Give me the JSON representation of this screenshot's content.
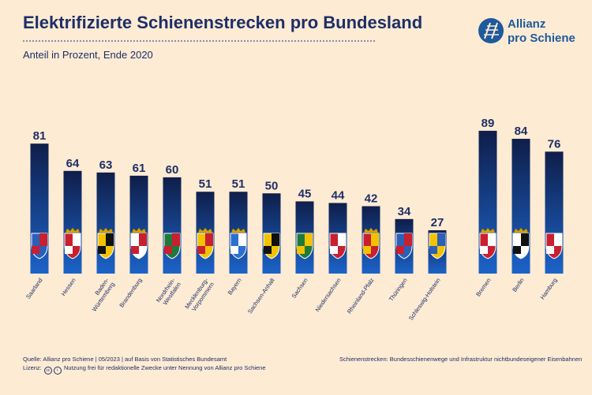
{
  "header": {
    "title": "Elektrifizierte Schienenstrecken pro Bundesland",
    "subtitle": "Anteil in Prozent, Ende 2020"
  },
  "logo": {
    "line1": "Allianz",
    "line2": "pro Schiene",
    "icon": "rail-tracks-logo-icon"
  },
  "footer": {
    "source": "Quelle: Allianz pro Schiene | 05/2023 | auf Basis von Statistisches Bundesamt",
    "license_label": "Lizenz:",
    "license_cc": "cc",
    "license_by": "i",
    "license_text": "Nutzung frei für redaktionelle Zwecke unter Nennung von Allianz pro Schiene",
    "note": "Schienenstrecken: Bundesschienenwege und Infrastruktur nichtbundeseigener Eisenbahnen"
  },
  "colors": {
    "bar_top": "#0f1e4a",
    "bar_bottom": "#1c63c8",
    "text": "#1e2f66",
    "background": "#fdebd4"
  },
  "chart_data": {
    "type": "bar",
    "title": "Elektrifizierte Schienenstrecken pro Bundesland",
    "subtitle": "Anteil in Prozent, Ende 2020",
    "ylim": [
      0,
      100
    ],
    "grid": false,
    "categories": [
      "Saarland",
      "Hessen",
      "Baden-Württemberg",
      "Brandenburg",
      "Nordrhein-Westfalen",
      "Mecklenburg-Vorpommern",
      "Bayern",
      "Sachsen-Anhalt",
      "Sachsen",
      "Niedersachsen",
      "Rheinland-Pfalz",
      "Thüringen",
      "Schleswig-Holstein",
      "Bremen",
      "Berlin",
      "Hamburg"
    ],
    "category_lines": [
      [
        "Saarland"
      ],
      [
        "Hessen"
      ],
      [
        "Baden-",
        "Württemberg"
      ],
      [
        "Brandenburg"
      ],
      [
        "Nordrhein-",
        "Westfalen"
      ],
      [
        "Mecklenburg-",
        "Vorpommern"
      ],
      [
        "Bayern"
      ],
      [
        "Sachsen-Anhalt"
      ],
      [
        "Sachsen"
      ],
      [
        "Niedersachsen"
      ],
      [
        "Rheinland-Pfalz"
      ],
      [
        "Thüringen"
      ],
      [
        "Schleswig-Holstein"
      ],
      [
        "Bremen"
      ],
      [
        "Berlin"
      ],
      [
        "Hamburg"
      ]
    ],
    "values": [
      81,
      64,
      63,
      61,
      60,
      51,
      51,
      50,
      45,
      44,
      42,
      34,
      27,
      89,
      84,
      76
    ],
    "data_labels": [
      "81",
      "64",
      "63",
      "61",
      "60",
      "51",
      "51",
      "50",
      "45",
      "44",
      "42",
      "34",
      "27",
      "89",
      "84",
      "76"
    ],
    "coat_of_arms_icons": [
      "saarland-coat-of-arms-icon",
      "hessen-coat-of-arms-icon",
      "baden-wuerttemberg-coat-of-arms-icon",
      "brandenburg-coat-of-arms-icon",
      "nordrhein-westfalen-coat-of-arms-icon",
      "mecklenburg-vorpommern-coat-of-arms-icon",
      "bayern-coat-of-arms-icon",
      "sachsen-anhalt-coat-of-arms-icon",
      "sachsen-coat-of-arms-icon",
      "niedersachsen-coat-of-arms-icon",
      "rheinland-pfalz-coat-of-arms-icon",
      "thueringen-coat-of-arms-icon",
      "schleswig-holstein-coat-of-arms-icon",
      "bremen-coat-of-arms-icon",
      "berlin-coat-of-arms-icon",
      "hamburg-coat-of-arms-icon"
    ],
    "shield_colors": [
      [
        "#2b5fb8",
        "#c8202f"
      ],
      [
        "#c8202f",
        "#ffffff"
      ],
      [
        "#f2c200",
        "#111111"
      ],
      [
        "#ffffff",
        "#c8202f"
      ],
      [
        "#1f7a3a",
        "#c8202f"
      ],
      [
        "#f2c200",
        "#c8202f"
      ],
      [
        "#2b6fd1",
        "#ffffff"
      ],
      [
        "#f2c200",
        "#111111"
      ],
      [
        "#1f7a3a",
        "#f2c200"
      ],
      [
        "#c8202f",
        "#ffffff"
      ],
      [
        "#c8202f",
        "#f2c200"
      ],
      [
        "#2b5fb8",
        "#c8202f"
      ],
      [
        "#f2c200",
        "#2b5fb8"
      ],
      [
        "#c8202f",
        "#ffffff"
      ],
      [
        "#ffffff",
        "#111111"
      ],
      [
        "#c8202f",
        "#ffffff"
      ]
    ],
    "crowned": [
      false,
      true,
      true,
      true,
      false,
      true,
      true,
      false,
      false,
      false,
      true,
      false,
      false,
      true,
      true,
      false
    ]
  }
}
